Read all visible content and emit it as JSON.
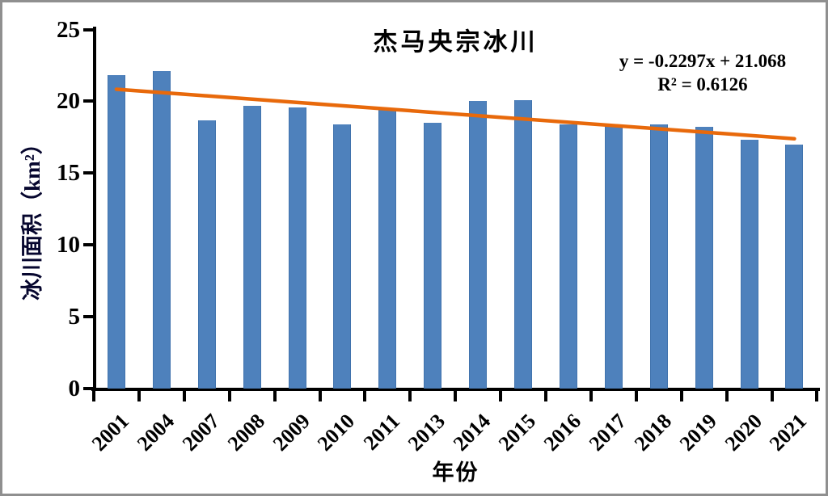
{
  "chart_data": {
    "type": "bar",
    "title": "杰马央宗冰川",
    "xlabel": "年份",
    "ylabel": "冰川面积（km²）",
    "categories": [
      "2001",
      "2004",
      "2007",
      "2008",
      "2009",
      "2010",
      "2011",
      "2013",
      "2014",
      "2015",
      "2016",
      "2017",
      "2018",
      "2019",
      "2020",
      "2021"
    ],
    "values": [
      21.8,
      22.1,
      18.7,
      19.7,
      19.6,
      18.4,
      19.4,
      18.5,
      20.0,
      20.1,
      18.4,
      18.3,
      18.4,
      18.2,
      17.3,
      17.0
    ],
    "ylim": [
      0,
      25
    ],
    "yticks": [
      0,
      5,
      10,
      15,
      20,
      25
    ],
    "grid": false,
    "legend": false,
    "bar_color": "#4E81BC",
    "trendline": {
      "equation_text": "y = -0.2297x + 21.068",
      "r2_text": "R² = 0.6126",
      "slope": -0.2297,
      "intercept": 21.068,
      "color": "#E8690B"
    }
  }
}
